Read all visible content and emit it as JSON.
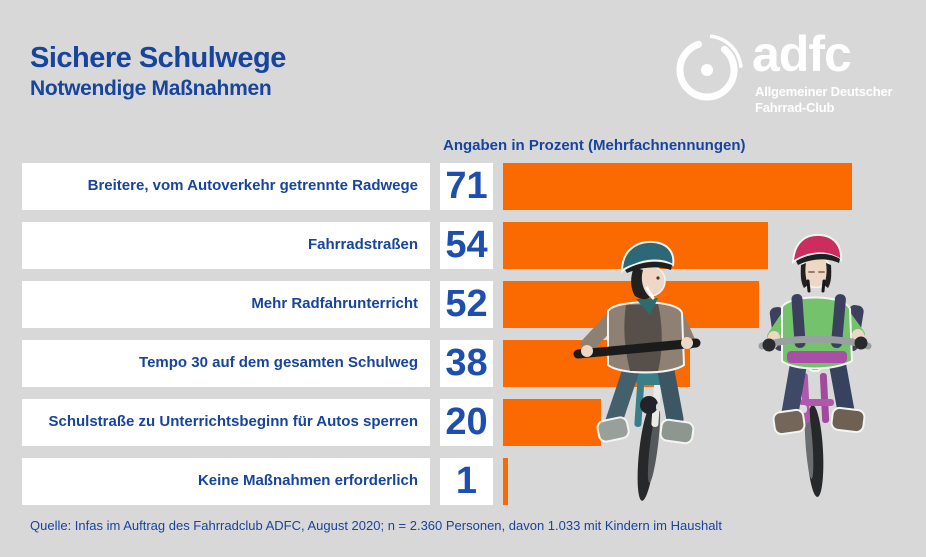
{
  "header": {
    "title": "Sichere Schulwege",
    "subtitle": "Notwendige Maßnahmen"
  },
  "logo": {
    "brand": "adfc",
    "tagline_line1": "Allgemeiner Deutscher",
    "tagline_line2": "Fahrrad-Club",
    "icon": "bicycle-wheel-icon"
  },
  "chart_data": {
    "type": "bar",
    "orientation": "horizontal",
    "title": "Sichere Schulwege",
    "subtitle": "Notwendige Maßnahmen",
    "value_axis_label": "Angaben in Prozent (Mehrfachnennungen)",
    "categories": [
      "Breitere, vom Autoverkehr getrennte Radwege",
      "Fahrradstraßen",
      "Mehr Radfahrunterricht",
      "Tempo 30 auf dem gesamten Schulweg",
      "Schulstraße zu Unterrichtsbeginn für Autos sperren",
      "Keine Maßnahmen erforderlich"
    ],
    "values": [
      71,
      54,
      52,
      38,
      20,
      1
    ],
    "unit": "percent",
    "xlim": [
      0,
      100
    ],
    "grid": false,
    "legend": false,
    "bar_color": "#FB6A00"
  },
  "source": "Quelle: Infas im Auftrag des Fahrradclub ADFC, August 2020; n = 2.360 Personen, davon 1.033 mit Kindern im Haushalt",
  "illustration": "two-children-riding-bicycles",
  "colors": {
    "background": "#D8D8D8",
    "panel": "#FFFFFF",
    "bar": "#FB6A00",
    "text_blue": "#17449C",
    "number_blue": "#1E4FAE",
    "logo": "#FFFFFF"
  }
}
